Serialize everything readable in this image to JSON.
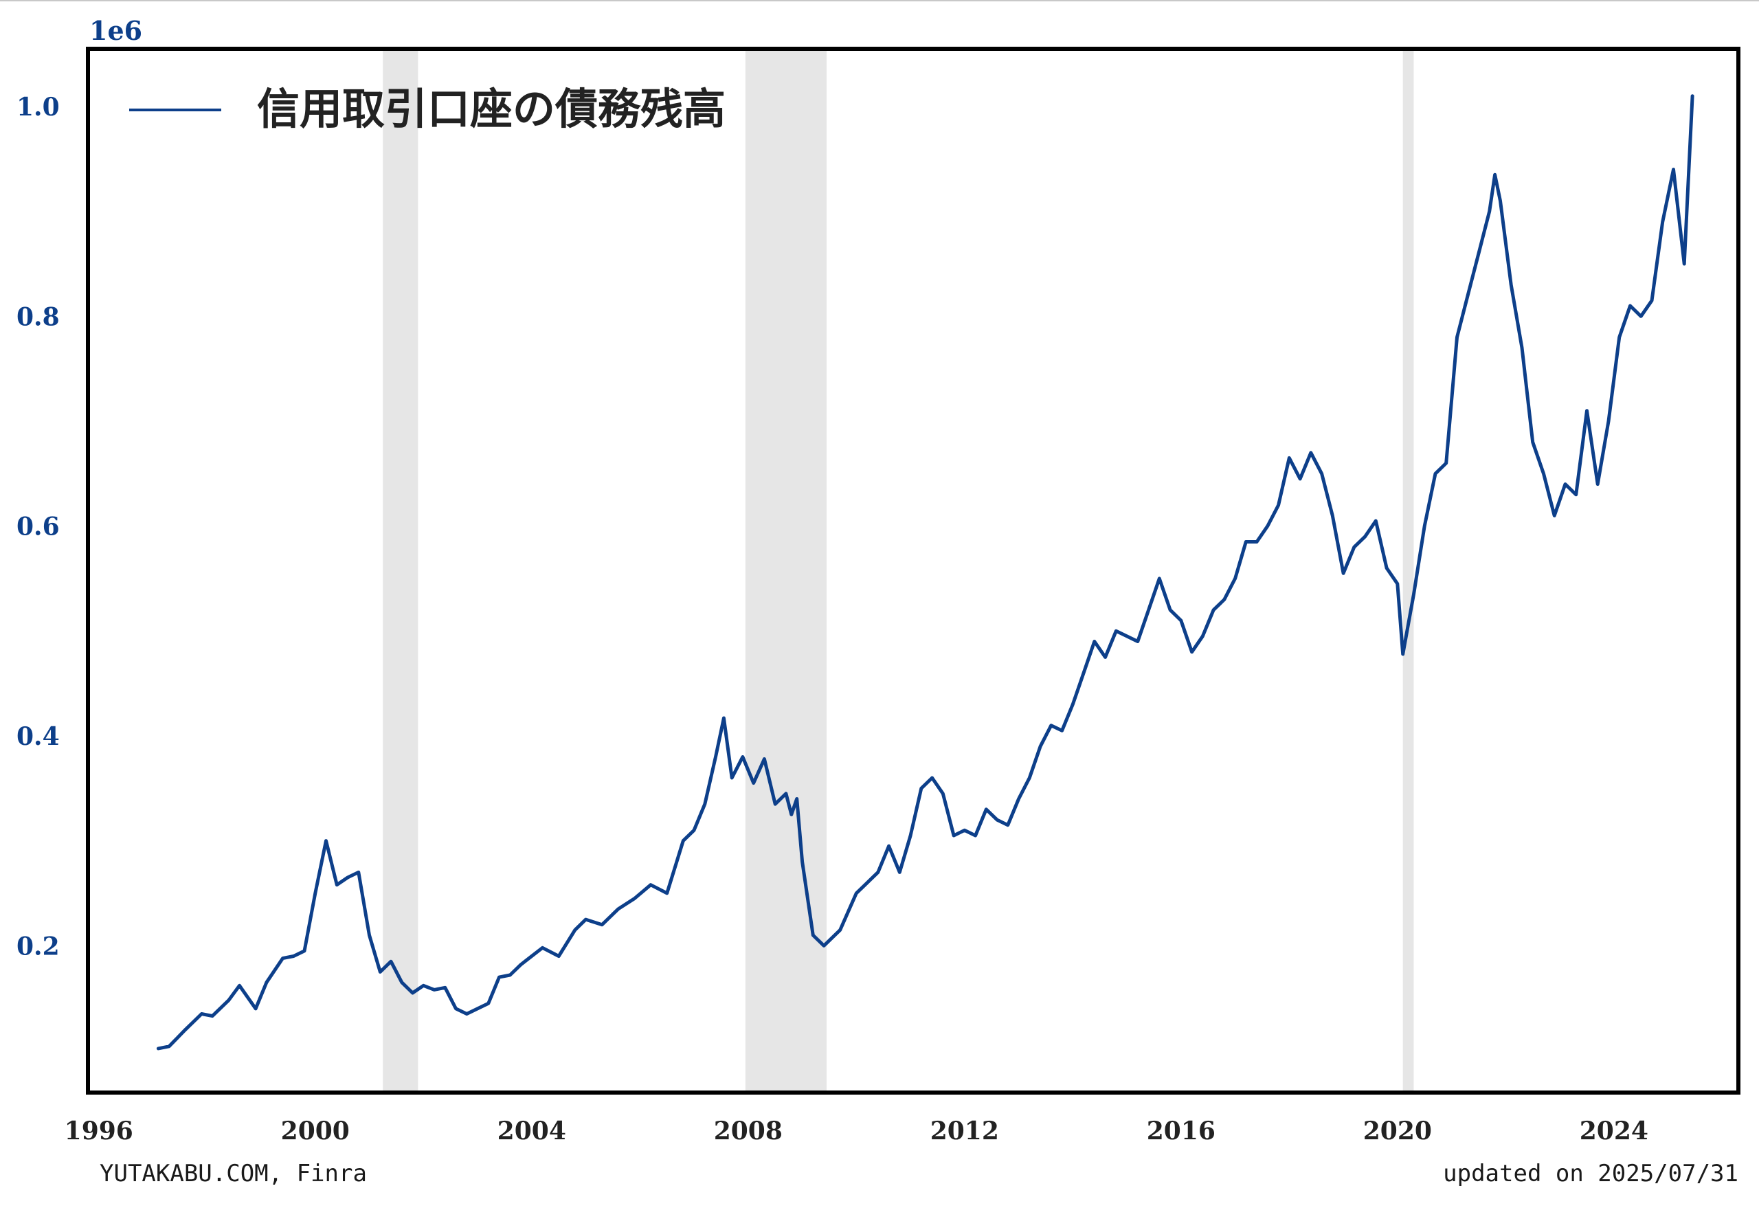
{
  "chart_data": {
    "type": "line",
    "y_scale_label": "1e6",
    "x_ticks": [
      "1996",
      "2000",
      "2004",
      "2008",
      "2012",
      "2016",
      "2020",
      "2024"
    ],
    "x_tick_values": [
      1996,
      2000,
      2004,
      2008,
      2012,
      2016,
      2020,
      2024
    ],
    "y_ticks": [
      "0.2",
      "0.4",
      "0.6",
      "0.8",
      "1.0"
    ],
    "y_tick_values": [
      0.2,
      0.4,
      0.6,
      0.8,
      1.0
    ],
    "xlim": [
      1995.8,
      2026.3
    ],
    "ylim": [
      0.06,
      1.055
    ],
    "grid": false,
    "legend_position": "top-left",
    "colors": {
      "series": "#0d3f8a",
      "recession": "#e6e6e6",
      "ticks": "#0d3f8a",
      "frame": "#000000"
    },
    "shaded_periods": [
      [
        2001.25,
        2001.9
      ],
      [
        2007.95,
        2009.45
      ],
      [
        2020.1,
        2020.3
      ]
    ],
    "series": [
      {
        "name": "信用取引口座の債務残高",
        "x": [
          1997.1,
          1997.3,
          1997.6,
          1997.9,
          1998.1,
          1998.4,
          1998.6,
          1998.9,
          1999.1,
          1999.4,
          1999.6,
          1999.8,
          2000.0,
          2000.2,
          2000.4,
          2000.6,
          2000.8,
          2001.0,
          2001.2,
          2001.4,
          2001.6,
          2001.8,
          2002.0,
          2002.2,
          2002.4,
          2002.6,
          2002.8,
          2003.0,
          2003.2,
          2003.4,
          2003.6,
          2003.8,
          2004.0,
          2004.2,
          2004.5,
          2004.8,
          2005.0,
          2005.3,
          2005.6,
          2005.9,
          2006.2,
          2006.5,
          2006.8,
          2007.0,
          2007.2,
          2007.4,
          2007.55,
          2007.7,
          2007.9,
          2008.1,
          2008.3,
          2008.5,
          2008.7,
          2008.8,
          2008.9,
          2009.0,
          2009.2,
          2009.4,
          2009.7,
          2010.0,
          2010.2,
          2010.4,
          2010.6,
          2010.8,
          2011.0,
          2011.2,
          2011.4,
          2011.6,
          2011.8,
          2012.0,
          2012.2,
          2012.4,
          2012.6,
          2012.8,
          2013.0,
          2013.2,
          2013.4,
          2013.6,
          2013.8,
          2014.0,
          2014.2,
          2014.4,
          2014.6,
          2014.8,
          2015.0,
          2015.2,
          2015.4,
          2015.6,
          2015.8,
          2016.0,
          2016.2,
          2016.4,
          2016.6,
          2016.8,
          2017.0,
          2017.2,
          2017.4,
          2017.6,
          2017.8,
          2018.0,
          2018.2,
          2018.4,
          2018.6,
          2018.8,
          2019.0,
          2019.2,
          2019.4,
          2019.6,
          2019.8,
          2020.0,
          2020.1,
          2020.3,
          2020.5,
          2020.7,
          2020.9,
          2021.1,
          2021.3,
          2021.5,
          2021.7,
          2021.8,
          2021.9,
          2022.1,
          2022.3,
          2022.5,
          2022.7,
          2022.9,
          2023.1,
          2023.3,
          2023.5,
          2023.7,
          2023.9,
          2024.1,
          2024.3,
          2024.5,
          2024.7,
          2024.9,
          2025.1,
          2025.3,
          2025.45
        ],
        "values": [
          0.102,
          0.104,
          0.12,
          0.135,
          0.133,
          0.148,
          0.162,
          0.14,
          0.165,
          0.188,
          0.19,
          0.195,
          0.25,
          0.3,
          0.258,
          0.265,
          0.27,
          0.21,
          0.175,
          0.185,
          0.165,
          0.155,
          0.162,
          0.158,
          0.16,
          0.14,
          0.135,
          0.14,
          0.145,
          0.17,
          0.172,
          0.182,
          0.19,
          0.198,
          0.19,
          0.215,
          0.225,
          0.22,
          0.235,
          0.245,
          0.258,
          0.25,
          0.3,
          0.31,
          0.335,
          0.38,
          0.417,
          0.36,
          0.38,
          0.355,
          0.378,
          0.335,
          0.345,
          0.325,
          0.34,
          0.28,
          0.21,
          0.2,
          0.215,
          0.25,
          0.26,
          0.27,
          0.295,
          0.27,
          0.305,
          0.35,
          0.36,
          0.345,
          0.305,
          0.31,
          0.305,
          0.33,
          0.32,
          0.315,
          0.34,
          0.36,
          0.39,
          0.41,
          0.405,
          0.43,
          0.46,
          0.49,
          0.475,
          0.5,
          0.495,
          0.49,
          0.52,
          0.55,
          0.52,
          0.51,
          0.48,
          0.495,
          0.52,
          0.53,
          0.55,
          0.585,
          0.585,
          0.6,
          0.62,
          0.665,
          0.645,
          0.67,
          0.65,
          0.61,
          0.555,
          0.58,
          0.59,
          0.605,
          0.56,
          0.545,
          0.478,
          0.535,
          0.6,
          0.65,
          0.66,
          0.78,
          0.82,
          0.86,
          0.9,
          0.935,
          0.91,
          0.83,
          0.77,
          0.68,
          0.65,
          0.61,
          0.64,
          0.63,
          0.71,
          0.64,
          0.7,
          0.78,
          0.81,
          0.8,
          0.815,
          0.89,
          0.94,
          0.85,
          1.01
        ]
      }
    ]
  },
  "footer": {
    "source": "YUTAKABU.COM, Finra",
    "updated": "updated on 2025/07/31"
  }
}
